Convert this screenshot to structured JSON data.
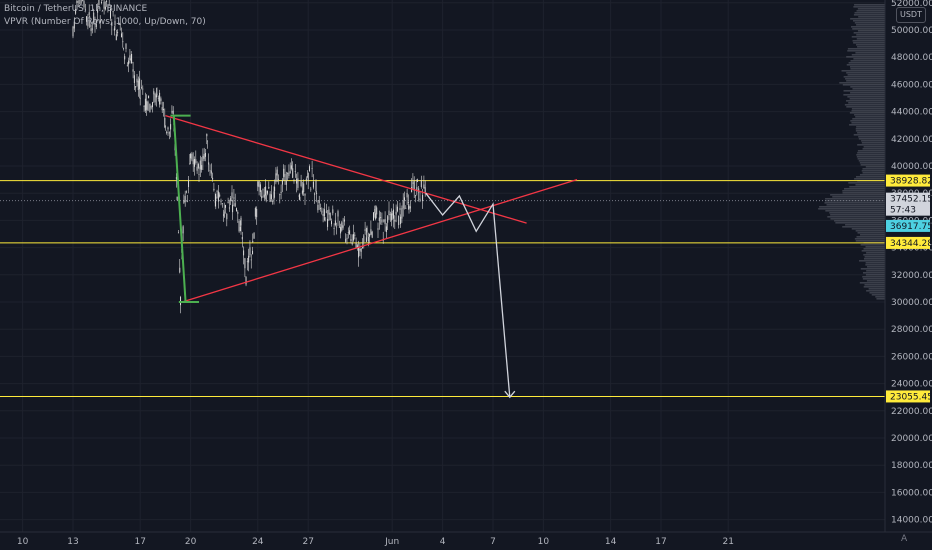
{
  "header": {
    "symbol_line": "Bitcoin / TetherUS, 1h, BINANCE",
    "indicator_line": "VPVR (Number Of Rows, 1000, Up/Down, 70)"
  },
  "axis": {
    "currency_button": "USDT",
    "corner_label": "A"
  },
  "colors": {
    "background": "#131722",
    "candle": "#d9d9d9",
    "trendline": "#f23645",
    "level": "#ffeb3b",
    "current_price": "#b2b5be",
    "accent_price": "#4dd0e1",
    "marker": "#4caf50",
    "projection": "#d1d4dc"
  },
  "chart_data": {
    "type": "candlestick",
    "y_ticks": [
      52000,
      50000,
      48000,
      46000,
      44000,
      42000,
      40000,
      38000,
      36000,
      34000,
      32000,
      30000,
      28000,
      26000,
      24000,
      22000,
      20000,
      18000,
      16000,
      14000
    ],
    "y_tick_labels": [
      "52000.00",
      "50000.00",
      "48000.00",
      "46000.00",
      "44000.00",
      "42000.00",
      "40000.00",
      "38000.00",
      "36000.00",
      "34000.00",
      "32000.00",
      "30000.00",
      "28000.00",
      "26000.00",
      "24000.00",
      "22000.00",
      "20000.00",
      "18000.00",
      "16000.00",
      "14000.00"
    ],
    "x_tick_labels": [
      "10",
      "13",
      "17",
      "20",
      "24",
      "27",
      "Jun",
      "4",
      "7",
      "10",
      "14",
      "17",
      "21"
    ],
    "x_tick_dates": [
      "May 10",
      "May 13",
      "May 17",
      "May 20",
      "May 24",
      "May 27",
      "Jun 1",
      "Jun 4",
      "Jun 7",
      "Jun 10",
      "Jun 14",
      "Jun 17",
      "Jun 21"
    ],
    "price_labels": [
      {
        "value": 38928.82,
        "label": "38928.82",
        "style": "level"
      },
      {
        "value": 37452.15,
        "label": "37452.15",
        "style": "current"
      },
      {
        "value": 37452.15,
        "label": "57:43",
        "style": "countdown"
      },
      {
        "value": 36917.75,
        "label": "36917.75",
        "style": "accent"
      },
      {
        "value": 34344.28,
        "label": "34344.28",
        "style": "level"
      },
      {
        "value": 23055.45,
        "label": "23055.45",
        "style": "level"
      }
    ],
    "horizontal_levels": [
      38928.82,
      34344.28,
      23055.45
    ],
    "current_price": 37452.15,
    "price_path": [
      [
        "May 13",
        50500
      ],
      [
        "May 13.5",
        52500
      ],
      [
        "May 14",
        50500
      ],
      [
        "May 15",
        52000
      ],
      [
        "May 15.5",
        50500
      ],
      [
        "May 16",
        49000
      ],
      [
        "May 16.5",
        47500
      ],
      [
        "May 17",
        45500
      ],
      [
        "May 17.5",
        44500
      ],
      [
        "May 18",
        45000
      ],
      [
        "May 18.5",
        43000
      ],
      [
        "May 19",
        43500
      ],
      [
        "May 19.2",
        37000
      ],
      [
        "May 19.4",
        30500
      ],
      [
        "May 19.6",
        37500
      ],
      [
        "May 19.8",
        38000
      ],
      [
        "May 20",
        40500
      ],
      [
        "May 20.5",
        39500
      ],
      [
        "May 21",
        41500
      ],
      [
        "May 21.5",
        38000
      ],
      [
        "May 22",
        36500
      ],
      [
        "May 22.5",
        37500
      ],
      [
        "May 23",
        35500
      ],
      [
        "May 23.3",
        32000
      ],
      [
        "May 23.7",
        34000
      ],
      [
        "May 24",
        38000
      ],
      [
        "May 24.5",
        37500
      ],
      [
        "May 25",
        38500
      ],
      [
        "May 26",
        39500
      ],
      [
        "May 26.5",
        38000
      ],
      [
        "May 27",
        39500
      ],
      [
        "May 27.5",
        38000
      ],
      [
        "May 28",
        36500
      ],
      [
        "May 29",
        35500
      ],
      [
        "May 30",
        34000
      ],
      [
        "May 30.5",
        35000
      ],
      [
        "May 31",
        36000
      ],
      [
        "May 31.5",
        35500
      ],
      [
        "Jun 1",
        37000
      ],
      [
        "Jun 1.5",
        36500
      ],
      [
        "Jun 2",
        37500
      ],
      [
        "Jun 2.5",
        38500
      ],
      [
        "Jun 3",
        38000
      ]
    ],
    "trendlines": [
      {
        "name": "",
        "points": [
          [
            "May 18.5",
            43700
          ],
          [
            "Jun 9",
            35800
          ]
        ]
      },
      {
        "name": "",
        "points": [
          [
            "May 19.5",
            30000
          ],
          [
            "Jun 12",
            39000
          ]
        ]
      }
    ],
    "projection_path": [
      [
        "Jun 3",
        38000
      ],
      [
        "Jun 4",
        36400
      ],
      [
        "Jun 5",
        37800
      ],
      [
        "Jun 6",
        35200
      ],
      [
        "Jun 7",
        37200
      ],
      [
        "Jun 8",
        23000
      ]
    ]
  }
}
